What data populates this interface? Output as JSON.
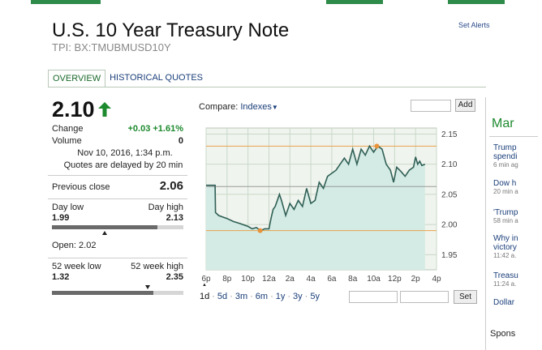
{
  "header": {
    "title": "U.S. 10 Year Treasury Note",
    "ticker": "TPI: BX:TMUBMUSD10Y",
    "set_alerts": "Set Alerts"
  },
  "tabs": [
    {
      "label": "OVERVIEW",
      "active": true
    },
    {
      "label": "HISTORICAL QUOTES",
      "active": false
    }
  ],
  "quote": {
    "price": "2.10",
    "change_label": "Change",
    "change_value": "+0.03 +1.61%",
    "volume_label": "Volume",
    "volume_value": "0",
    "timestamp": "Nov 10, 2016, 1:34 p.m.",
    "delay_note": "Quotes are delayed by 20 min",
    "prev_close_label": "Previous close",
    "prev_close_value": "2.06",
    "day_low_label": "Day low",
    "day_high_label": "Day high",
    "day_low": "1.99",
    "day_high": "2.13",
    "day_range_fill": 0.8,
    "day_range_marker": 0.4,
    "open_text": "Open: 2.02",
    "wk52_low_label": "52 week low",
    "wk52_high_label": "52 week high",
    "wk52_low": "1.32",
    "wk52_high": "2.35",
    "wk52_fill": 0.77,
    "wk52_marker": 0.73,
    "colors": {
      "up": "#1d8a2e"
    }
  },
  "compare": {
    "label": "Compare:",
    "dropdown": "Indexes",
    "add_button": "Add",
    "set_button": "Set"
  },
  "range_links": [
    "1d",
    "5d",
    "3m",
    "6m",
    "1y",
    "3y",
    "5y"
  ],
  "chart_data": {
    "type": "area",
    "x_ticks": [
      "6p",
      "8p",
      "10p",
      "12a",
      "2a",
      "4a",
      "6a",
      "8a",
      "10a",
      "12p",
      "2p",
      "4p"
    ],
    "y_ticks": [
      "2.15",
      "2.10",
      "2.05",
      "2.00",
      "1.95"
    ],
    "ylim": [
      1.925,
      2.16
    ],
    "reference_lines": {
      "high": 2.13,
      "previous_close": 2.063,
      "low": 1.99
    },
    "series": [
      {
        "x": [
          0,
          0.43,
          0.45,
          0.6,
          1.0,
          1.3,
          1.6,
          2.0,
          2.2,
          2.4,
          2.6,
          2.8,
          3.0,
          3.1,
          3.2,
          3.3,
          3.4,
          3.5,
          3.6,
          3.8,
          4.0,
          4.2,
          4.4,
          4.6,
          4.8,
          5.0,
          5.2,
          5.4,
          5.6,
          5.8,
          6.0,
          6.2,
          6.4,
          6.6,
          6.8,
          7.0,
          7.2,
          7.4,
          7.6,
          7.8,
          8.0,
          8.2,
          8.4,
          8.6,
          8.8,
          8.95,
          9.1,
          9.3,
          9.5,
          9.7,
          9.9,
          10.0,
          10.1,
          10.2,
          10.3,
          10.45
        ],
        "y": [
          2.065,
          2.065,
          2.02,
          2.015,
          2.01,
          2.005,
          2.002,
          1.997,
          1.993,
          1.995,
          1.99,
          1.993,
          1.993,
          2.01,
          2.025,
          2.03,
          2.04,
          2.05,
          2.04,
          2.015,
          2.035,
          2.025,
          2.04,
          2.03,
          2.06,
          2.035,
          2.04,
          2.07,
          2.06,
          2.08,
          2.085,
          2.09,
          2.1,
          2.11,
          2.1,
          2.125,
          2.1,
          2.125,
          2.115,
          2.13,
          2.12,
          2.13,
          2.125,
          2.1,
          2.09,
          2.07,
          2.095,
          2.088,
          2.08,
          2.09,
          2.095,
          2.112,
          2.1,
          2.105,
          2.098,
          2.1
        ]
      }
    ],
    "markers": [
      {
        "x": 2.58,
        "y": 1.99,
        "label": "low"
      },
      {
        "x": 8.15,
        "y": 2.13,
        "label": "high"
      }
    ],
    "colors": {
      "line": "#2f5f55",
      "fill": "#d3ebe4",
      "plot_bg": "#f0f4ee",
      "grid": "#c8d8c8",
      "ref_line": "#e8a24a",
      "prev_close": "#999999",
      "marker": "#e8923a"
    }
  },
  "sidebar": {
    "heading": "Mar",
    "news": [
      {
        "headline": "Trump",
        "headline2": "spendi",
        "time": "6 min ag"
      },
      {
        "headline": "Dow h",
        "time": "20 min a"
      },
      {
        "headline": "'Trump",
        "time": "58 min a"
      },
      {
        "headline": "Why in",
        "headline2": "victory",
        "time": "11:42 a."
      },
      {
        "headline": "Treasu",
        "time": "11:24 a."
      },
      {
        "headline": "Dollar",
        "time": ""
      }
    ],
    "sponsored": "Spons"
  }
}
